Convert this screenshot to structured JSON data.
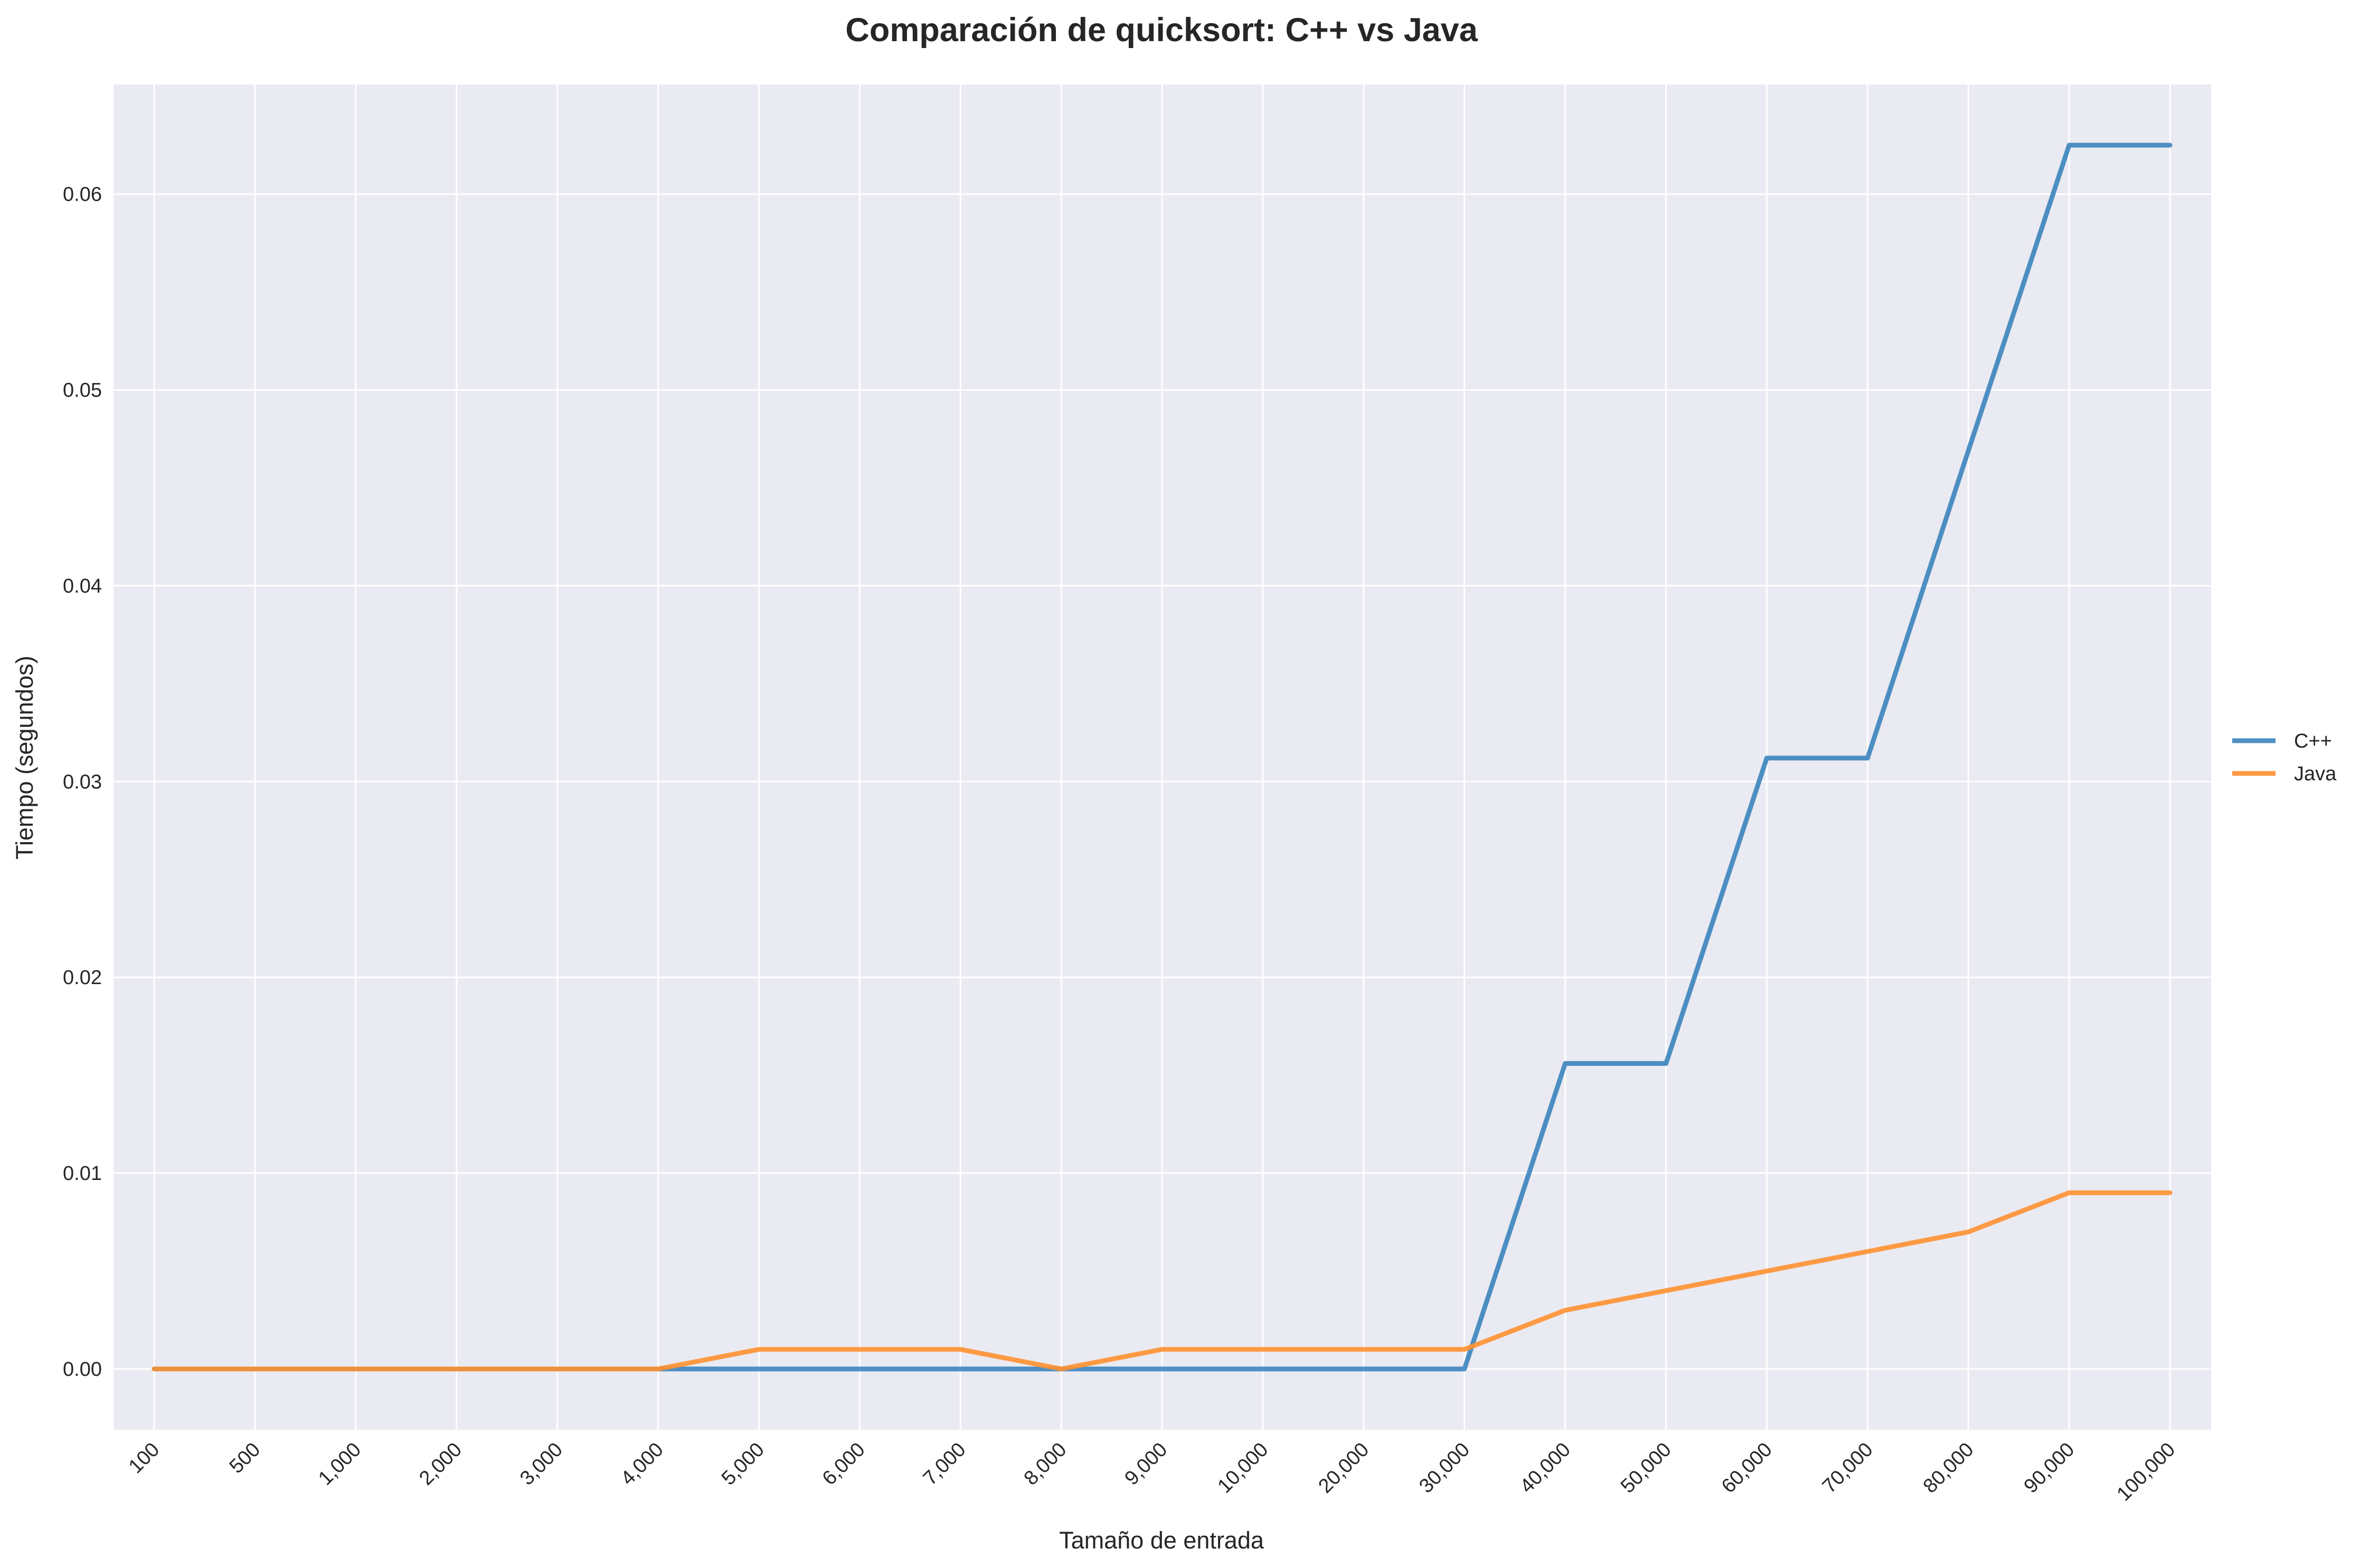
{
  "chart_data": {
    "type": "line",
    "title": "Comparación de quicksort: C++ vs Java",
    "xlabel": "Tamaño de entrada",
    "ylabel": "Tiempo (segundos)",
    "categories": [
      "100",
      "500",
      "1,000",
      "2,000",
      "3,000",
      "4,000",
      "5,000",
      "6,000",
      "7,000",
      "8,000",
      "9,000",
      "10,000",
      "20,000",
      "30,000",
      "40,000",
      "50,000",
      "60,000",
      "70,000",
      "80,000",
      "90,000",
      "100,000"
    ],
    "y_ticks": [
      "0.00",
      "0.01",
      "0.02",
      "0.03",
      "0.04",
      "0.05",
      "0.06"
    ],
    "ylim": [
      -0.0031,
      0.0656
    ],
    "grid": true,
    "legend_position": "center-right",
    "series": [
      {
        "name": "C++",
        "color": "#3b84bd",
        "values": [
          0,
          0,
          0,
          0,
          0,
          0,
          0,
          0,
          0,
          0,
          0,
          0,
          0,
          0,
          0.0156,
          0.0156,
          0.0312,
          0.0312,
          0.0469,
          0.0625,
          0.0625
        ]
      },
      {
        "name": "Java",
        "color": "#ff9130",
        "values": [
          0,
          0,
          0,
          0,
          0,
          0,
          0.001,
          0.001,
          0.001,
          0,
          0.001,
          0.001,
          0.001,
          0.001,
          0.003,
          0.004,
          0.005,
          0.006,
          0.007,
          0.009,
          0.009
        ]
      }
    ]
  },
  "colors": {
    "plot_background": "#eaeaf2",
    "grid": "#ffffff",
    "text": "#262626"
  }
}
